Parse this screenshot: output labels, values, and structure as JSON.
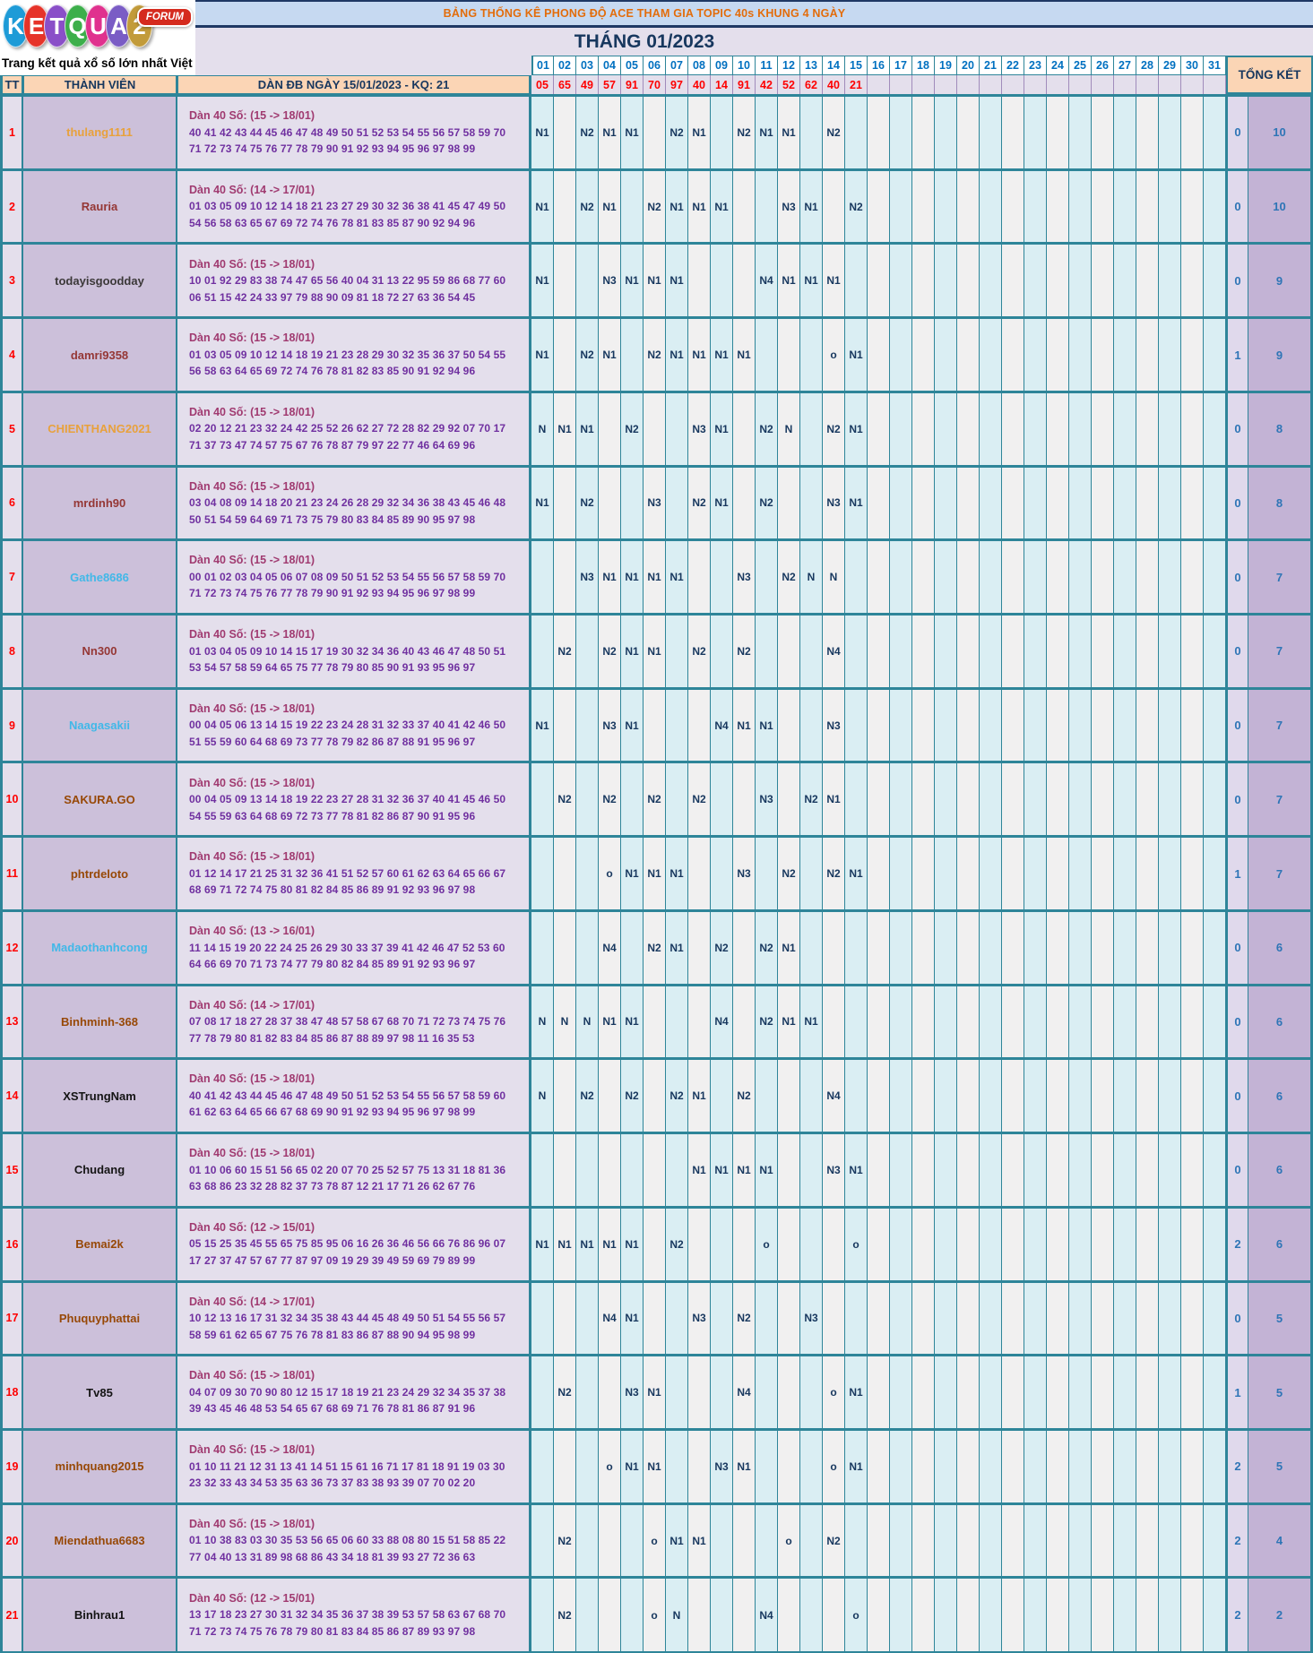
{
  "logo": {
    "letters": [
      {
        "ch": "K",
        "color": "#1E9BD7"
      },
      {
        "ch": "E",
        "color": "#E63329"
      },
      {
        "ch": "T",
        "color": "#8A4FC8"
      },
      {
        "ch": "Q",
        "color": "#3DAF4B"
      },
      {
        "ch": "U",
        "color": "#E0318E"
      },
      {
        "ch": "A",
        "color": "#7A5CC5"
      },
      {
        "ch": "2",
        "color": "#C29B3A"
      }
    ],
    "forum": "FORUM",
    "tagline": "Trang kết quả xổ số lớn nhất Việt Nam"
  },
  "banners": {
    "title": "BẢNG THỐNG KÊ PHONG ĐỘ ACE THAM GIA TOPIC 40s KHUNG 4 NGÀY",
    "month": "THÁNG 01/2023"
  },
  "table": {
    "headers": {
      "tt": "TT",
      "member": "THÀNH VIÊN",
      "dan": "DÀN ĐB NGÀY 15/01/2023 - KQ: 21",
      "tongket": "TỔNG KẾT"
    },
    "days": [
      "01",
      "02",
      "03",
      "04",
      "05",
      "06",
      "07",
      "08",
      "09",
      "10",
      "11",
      "12",
      "13",
      "14",
      "15",
      "16",
      "17",
      "18",
      "19",
      "20",
      "21",
      "22",
      "23",
      "24",
      "25",
      "26",
      "27",
      "28",
      "29",
      "30",
      "31"
    ],
    "day_results": [
      "05",
      "65",
      "49",
      "57",
      "91",
      "70",
      "97",
      "40",
      "14",
      "91",
      "42",
      "52",
      "62",
      "40",
      "21",
      "",
      "",
      "",
      "",
      "",
      "",
      "",
      "",
      "",
      "",
      "",
      "",
      "",
      "",
      "",
      ""
    ],
    "rows": [
      {
        "tt": "1",
        "member": "thulang1111",
        "member_color": "#E8A13C",
        "dan_title": "Dàn 40 Số: (15 -> 18/01)",
        "dan_line1": "40 41 42 43 44 45 46 47 48 49 50 51 52 53 54 55 56 57 58 59 70",
        "dan_line2": "71 72 73 74 75 76 77 78 79 90 91 92 93 94 95 96 97 98 99",
        "marks": {
          "01": "N1",
          "03": "N2",
          "04": "N1",
          "05": "N1",
          "07": "N2",
          "08": "N1",
          "10": "N2",
          "11": "N1",
          "12": "N1",
          "14": "N2"
        },
        "tk1": "0",
        "tk2": "10"
      },
      {
        "tt": "2",
        "member": "Rauria",
        "member_color": "#953735",
        "dan_title": "Dàn 40 Số: (14 -> 17/01)",
        "dan_line1": "01 03 05 09 10 12 14 18 21 23 27 29 30 32 36 38 41 45 47 49 50",
        "dan_line2": "54 56 58 63 65 67 69 72 74 76 78 81 83 85 87 90 92 94 96",
        "marks": {
          "01": "N1",
          "03": "N2",
          "04": "N1",
          "06": "N2",
          "07": "N1",
          "08": "N1",
          "09": "N1",
          "12": "N3",
          "13": "N1",
          "15": "N2"
        },
        "tk1": "0",
        "tk2": "10"
      },
      {
        "tt": "3",
        "member": "todayisgoodday",
        "member_color": "#3B3838",
        "dan_title": "Dàn 40 Số: (15 -> 18/01)",
        "dan_line1": "10 01 92 29 83 38 74 47 65 56 40 04 31 13 22 95 59 86 68 77 60",
        "dan_line2": "06 51 15 42 24 33 97 79 88 90 09 81 18 72 27 63 36 54 45",
        "marks": {
          "01": "N1",
          "04": "N3",
          "05": "N1",
          "06": "N1",
          "07": "N1",
          "11": "N4",
          "12": "N1",
          "13": "N1",
          "14": "N1"
        },
        "tk1": "0",
        "tk2": "9"
      },
      {
        "tt": "4",
        "member": "damri9358",
        "member_color": "#953735",
        "dan_title": "Dàn 40 Số: (15 -> 18/01)",
        "dan_line1": "01 03 05 09 10 12 14 18 19 21 23 28 29 30 32 35 36 37 50 54 55",
        "dan_line2": "56 58 63 64 65 69 72 74 76 78 81 82 83 85 90 91 92 94 96",
        "marks": {
          "01": "N1",
          "03": "N2",
          "04": "N1",
          "06": "N2",
          "07": "N1",
          "08": "N1",
          "09": "N1",
          "10": "N1",
          "14": "o",
          "15": "N1"
        },
        "tk1": "1",
        "tk2": "9"
      },
      {
        "tt": "5",
        "member": "CHIENTHANG2021",
        "member_color": "#E8A13C",
        "dan_title": "Dàn 40 Số: (15 -> 18/01)",
        "dan_line1": "02 20 12 21 23 32 24 42 25 52 26 62 27 72 28 82 29 92 07 70 17",
        "dan_line2": "71 37 73 47 74 57 75 67 76 78 87 79 97 22 77 46 64 69 96",
        "marks": {
          "01": "N",
          "02": "N1",
          "03": "N1",
          "05": "N2",
          "08": "N3",
          "09": "N1",
          "11": "N2",
          "12": "N",
          "14": "N2",
          "15": "N1"
        },
        "tk1": "0",
        "tk2": "8"
      },
      {
        "tt": "6",
        "member": "mrdinh90",
        "member_color": "#953735",
        "dan_title": "Dàn 40 Số: (15 -> 18/01)",
        "dan_line1": "03 04 08 09 14 18 20 21 23 24 26 28 29 32 34 36 38 43 45 46 48",
        "dan_line2": "50 51 54 59 64 69 71 73 75 79 80 83 84 85 89 90 95 97 98",
        "marks": {
          "01": "N1",
          "03": "N2",
          "06": "N3",
          "08": "N2",
          "09": "N1",
          "11": "N2",
          "14": "N3",
          "15": "N1"
        },
        "tk1": "0",
        "tk2": "8"
      },
      {
        "tt": "7",
        "member": "Gathe8686",
        "member_color": "#41B8E8",
        "dan_title": "Dàn 40 Số: (15 -> 18/01)",
        "dan_line1": "00 01 02 03 04 05 06 07 08 09 50 51 52 53 54 55 56 57 58 59 70",
        "dan_line2": "71 72 73 74 75 76 77 78 79 90 91 92 93 94 95 96 97 98 99",
        "marks": {
          "03": "N3",
          "04": "N1",
          "05": "N1",
          "06": "N1",
          "07": "N1",
          "10": "N3",
          "12": "N2",
          "13": "N",
          "14": "N"
        },
        "tk1": "0",
        "tk2": "7"
      },
      {
        "tt": "8",
        "member": "Nn300",
        "member_color": "#953735",
        "dan_title": "Dàn 40 Số: (15 -> 18/01)",
        "dan_line1": "01 03 04 05 09 10 14 15 17 19 30 32 34 36 40 43 46 47 48 50 51",
        "dan_line2": "53 54 57 58 59 64 65 75 77 78 79 80 85 90 91 93 95 96 97",
        "marks": {
          "02": "N2",
          "04": "N2",
          "05": "N1",
          "06": "N1",
          "08": "N2",
          "10": "N2",
          "14": "N4"
        },
        "tk1": "0",
        "tk2": "7"
      },
      {
        "tt": "9",
        "member": "Naagasakii",
        "member_color": "#41B8E8",
        "dan_title": "Dàn 40 Số: (15 -> 18/01)",
        "dan_line1": "00 04 05 06 13 14 15 19 22 23 24 28 31 32 33 37 40 41 42 46 50",
        "dan_line2": "51 55 59 60 64 68 69 73 77 78 79 82 86 87 88 91 95 96 97",
        "marks": {
          "01": "N1",
          "04": "N3",
          "05": "N1",
          "09": "N4",
          "10": "N1",
          "11": "N1",
          "14": "N3"
        },
        "tk1": "0",
        "tk2": "7"
      },
      {
        "tt": "10",
        "member": "SAKURA.GO",
        "member_color": "#974806",
        "dan_title": "Dàn 40 Số: (15 -> 18/01)",
        "dan_line1": "00 04 05 09 13 14 18 19 22 23 27 28 31 32 36 37 40 41 45 46 50",
        "dan_line2": "54 55 59 63 64 68 69 72 73 77 78 81 82 86 87 90 91 95 96",
        "marks": {
          "02": "N2",
          "04": "N2",
          "06": "N2",
          "08": "N2",
          "11": "N3",
          "13": "N2",
          "14": "N1"
        },
        "tk1": "0",
        "tk2": "7"
      },
      {
        "tt": "11",
        "member": "phtrdeloto",
        "member_color": "#974806",
        "dan_title": "Dàn 40 Số: (15 -> 18/01)",
        "dan_line1": "01 12 14 17 21 25 31 32 36 41 51 52 57 60 61 62 63 64 65 66 67",
        "dan_line2": "68 69 71 72 74 75 80 81 82 84 85 86 89 91 92 93 96 97 98",
        "marks": {
          "04": "o",
          "05": "N1",
          "06": "N1",
          "07": "N1",
          "10": "N3",
          "12": "N2",
          "14": "N2",
          "15": "N1"
        },
        "tk1": "1",
        "tk2": "7"
      },
      {
        "tt": "12",
        "member": "Madaothanhcong",
        "member_color": "#41B8E8",
        "dan_title": "Dàn 40 Số: (13 -> 16/01)",
        "dan_line1": "11 14 15 19 20 22 24 25 26 29 30 33 37 39 41 42 46 47 52 53 60",
        "dan_line2": "64 66 69 70 71 73 74 77 79 80 82 84 85 89 91 92 93 96 97",
        "marks": {
          "04": "N4",
          "06": "N2",
          "07": "N1",
          "09": "N2",
          "11": "N2",
          "12": "N1"
        },
        "tk1": "0",
        "tk2": "6"
      },
      {
        "tt": "13",
        "member": "Binhminh-368",
        "member_color": "#974806",
        "dan_title": "Dàn 40 Số: (14 -> 17/01)",
        "dan_line1": "07 08 17 18 27 28 37 38 47 48 57 58 67 68 70 71 72 73 74 75 76",
        "dan_line2": "77 78 79 80 81 82 83 84 85 86 87 88 89 97 98 11 16 35 53",
        "marks": {
          "01": "N",
          "02": "N",
          "03": "N",
          "04": "N1",
          "05": "N1",
          "09": "N4",
          "11": "N2",
          "12": "N1",
          "13": "N1"
        },
        "tk1": "0",
        "tk2": "6"
      },
      {
        "tt": "14",
        "member": "XSTrungNam",
        "member_color": "#141414",
        "dan_title": "Dàn 40 Số: (15 -> 18/01)",
        "dan_line1": "40 41 42 43 44 45 46 47 48 49 50 51 52 53 54 55 56 57 58 59 60",
        "dan_line2": "61 62 63 64 65 66 67 68 69 90 91 92 93 94 95 96 97 98 99",
        "marks": {
          "01": "N",
          "03": "N2",
          "05": "N2",
          "07": "N2",
          "08": "N1",
          "10": "N2",
          "14": "N4"
        },
        "tk1": "0",
        "tk2": "6"
      },
      {
        "tt": "15",
        "member": "Chudang",
        "member_color": "#141414",
        "dan_title": "Dàn 40 Số: (15 -> 18/01)",
        "dan_line1": "01 10 06 60 15 51 56 65 02 20 07 70 25 52 57 75 13 31 18 81 36",
        "dan_line2": "63 68 86 23 32 28 82 37 73 78 87 12 21 17 71 26 62 67 76",
        "marks": {
          "08": "N1",
          "09": "N1",
          "10": "N1",
          "11": "N1",
          "14": "N3",
          "15": "N1"
        },
        "tk1": "0",
        "tk2": "6"
      },
      {
        "tt": "16",
        "member": "Bemai2k",
        "member_color": "#974806",
        "dan_title": "Dàn 40 Số: (12 -> 15/01)",
        "dan_line1": "05 15 25 35 45 55 65 75 85 95 06 16 26 36 46 56 66 76 86 96 07",
        "dan_line2": "17 27 37 47 57 67 77 87 97 09 19 29 39 49 59 69 79 89 99",
        "marks": {
          "01": "N1",
          "02": "N1",
          "03": "N1",
          "04": "N1",
          "05": "N1",
          "07": "N2",
          "11": "o",
          "15": "o"
        },
        "tk1": "2",
        "tk2": "6"
      },
      {
        "tt": "17",
        "member": "Phuquyphattai",
        "member_color": "#974806",
        "dan_title": "Dàn 40 Số: (14 -> 17/01)",
        "dan_line1": "10 12 13 16 17 31 32 34 35 38 43 44 45 48 49 50 51 54 55 56 57",
        "dan_line2": "58 59 61 62 65 67 75 76 78 81 83 86 87 88 90 94 95 98 99",
        "marks": {
          "04": "N4",
          "05": "N1",
          "08": "N3",
          "10": "N2",
          "13": "N3"
        },
        "tk1": "0",
        "tk2": "5"
      },
      {
        "tt": "18",
        "member": "Tv85",
        "member_color": "#141414",
        "dan_title": "Dàn 40 Số: (15 -> 18/01)",
        "dan_line1": "04 07 09 30 70 90 80 12 15 17 18 19 21 23 24 29 32 34 35 37 38",
        "dan_line2": "39 43 45 46 48 53 54 65 67 68 69 71 76 78 81 86 87 91 96",
        "marks": {
          "02": "N2",
          "05": "N3",
          "06": "N1",
          "10": "N4",
          "14": "o",
          "15": "N1"
        },
        "tk1": "1",
        "tk2": "5"
      },
      {
        "tt": "19",
        "member": "minhquang2015",
        "member_color": "#974806",
        "dan_title": "Dàn 40 Số: (15 -> 18/01)",
        "dan_line1": "01 10 11 21 12 31 13 41 14 51 15 61 16 71 17 81 18 91 19 03 30",
        "dan_line2": "23 32 33 43 34 53 35 63 36 73 37 83 38 93 39 07 70 02 20",
        "marks": {
          "04": "o",
          "05": "N1",
          "06": "N1",
          "09": "N3",
          "10": "N1",
          "14": "o",
          "15": "N1"
        },
        "tk1": "2",
        "tk2": "5"
      },
      {
        "tt": "20",
        "member": "Miendathua6683",
        "member_color": "#974806",
        "dan_title": "Dàn 40 Số: (15 -> 18/01)",
        "dan_line1": "01 10 38 83 03 30 35 53 56 65 06 60 33 88 08 80 15 51 58 85 22",
        "dan_line2": "77 04 40 13 31 89 98 68 86 43 34 18 81 39 93 27 72 36 63",
        "marks": {
          "02": "N2",
          "06": "o",
          "07": "N1",
          "08": "N1",
          "12": "o",
          "14": "N2"
        },
        "tk1": "2",
        "tk2": "4"
      },
      {
        "tt": "21",
        "member": "Binhrau1",
        "member_color": "#141414",
        "dan_title": "Dàn 40 Số: (12 -> 15/01)",
        "dan_line1": "13 17 18 23 27 30 31 32 34 35 36 37 38 39 53 57 58 63 67 68 70",
        "dan_line2": "71 72 73 74 75 76 78 79 80 81 83 84 85 86 87 89 93 97 98",
        "marks": {
          "02": "N2",
          "06": "o",
          "07": "N",
          "11": "N4",
          "15": "o"
        },
        "tk1": "2",
        "tk2": "2"
      }
    ]
  }
}
